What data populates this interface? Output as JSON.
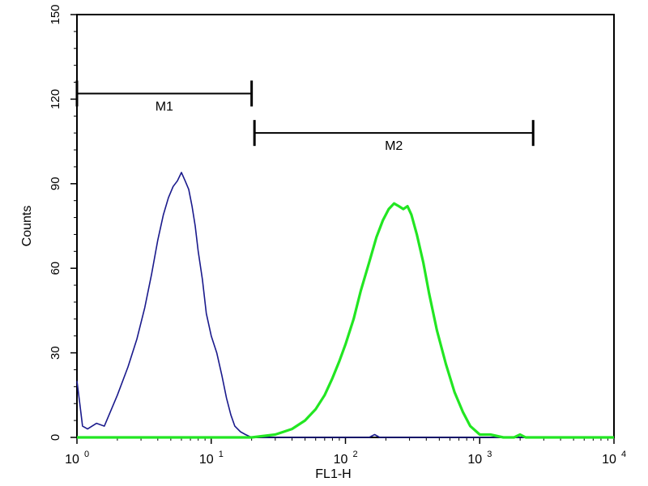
{
  "chart_data": {
    "type": "line",
    "xlabel": "FL1-H",
    "ylabel": "Counts",
    "x_scale": "log",
    "xlim": [
      1,
      10000
    ],
    "ylim": [
      0,
      150
    ],
    "xticks": [
      {
        "value": 1,
        "base": "10",
        "exp": "0"
      },
      {
        "value": 10,
        "base": "10",
        "exp": "1"
      },
      {
        "value": 100,
        "base": "10",
        "exp": "2"
      },
      {
        "value": 1000,
        "base": "10",
        "exp": "3"
      },
      {
        "value": 10000,
        "base": "10",
        "exp": "4"
      }
    ],
    "yticks": [
      0,
      30,
      60,
      90,
      120,
      150
    ],
    "grid": false,
    "series": [
      {
        "color": "#1a1a8c",
        "x": [
          1.0,
          1.05,
          1.1,
          1.2,
          1.4,
          1.6,
          2.0,
          2.4,
          2.8,
          3.2,
          3.6,
          4.0,
          4.4,
          4.8,
          5.2,
          5.6,
          6.0,
          6.4,
          6.8,
          7.2,
          7.6,
          8.0,
          8.6,
          9.2,
          10.0,
          11.0,
          12.0,
          13.0,
          14.0,
          15.0,
          16.5,
          18.0,
          20.0,
          25.0,
          40.0,
          100.0,
          150.0,
          165.0,
          180.0,
          250.0,
          500.0,
          1000.0,
          10000.0
        ],
        "values": [
          20,
          12,
          4,
          3,
          5,
          4,
          15,
          25,
          35,
          46,
          58,
          70,
          79,
          85,
          89,
          91,
          94,
          91,
          88,
          82,
          75,
          66,
          56,
          44,
          36,
          30,
          22,
          14,
          8,
          4,
          2,
          1,
          0,
          0,
          0,
          0,
          0,
          1,
          0,
          0,
          0,
          0,
          0
        ]
      },
      {
        "color": "#22e622",
        "x": [
          1.0,
          20.0,
          30.0,
          40.0,
          50.0,
          60.0,
          70.0,
          80.0,
          90.0,
          100.0,
          115.0,
          130.0,
          150.0,
          170.0,
          190.0,
          210.0,
          230.0,
          250.0,
          270.0,
          290.0,
          310.0,
          340.0,
          380.0,
          420.0,
          480.0,
          560.0,
          650.0,
          750.0,
          850.0,
          1000.0,
          1200.0,
          1500.0,
          1800.0,
          2000.0,
          2200.0,
          3000.0,
          10000.0
        ],
        "values": [
          0,
          0,
          1,
          3,
          6,
          10,
          15,
          21,
          27,
          33,
          42,
          52,
          62,
          71,
          77,
          81,
          83,
          82,
          81,
          82,
          79,
          72,
          62,
          51,
          38,
          26,
          16,
          9,
          4,
          1,
          1,
          0,
          0,
          1,
          0,
          0,
          0
        ]
      }
    ],
    "markers": [
      {
        "label": "M1",
        "x_start": 1.0,
        "x_end": 20.0,
        "y": 122
      },
      {
        "label": "M2",
        "x_start": 21.0,
        "x_end": 2500.0,
        "y": 108
      }
    ]
  }
}
